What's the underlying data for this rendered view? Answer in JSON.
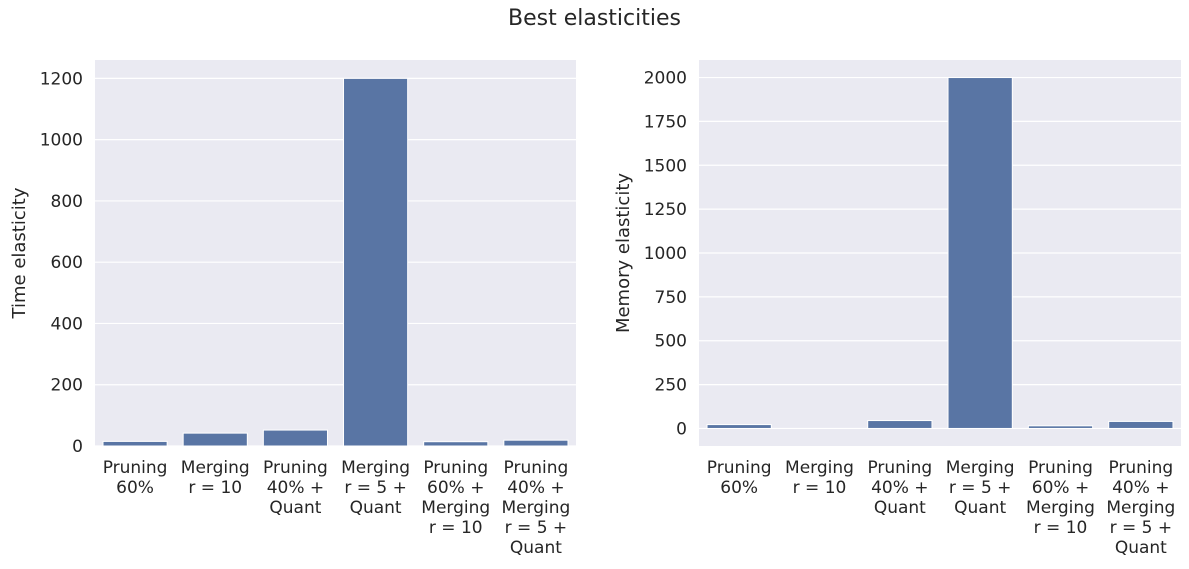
{
  "title": "Best elasticities",
  "colors": {
    "bar": "#5975a4",
    "plot_bg": "#eaeaf2",
    "grid": "#ffffff",
    "text": "#262626"
  },
  "chart_data": [
    {
      "type": "bar",
      "ylabel": "Time elasticity",
      "xlabel": "",
      "ylim": [
        0,
        1260
      ],
      "yticks": [
        0,
        200,
        400,
        600,
        800,
        1000,
        1200
      ],
      "categories": [
        [
          "Pruning",
          "60%"
        ],
        [
          "Merging",
          "r = 10"
        ],
        [
          "Pruning",
          "40% +",
          "Quant"
        ],
        [
          "Merging",
          "r = 5 +",
          "Quant"
        ],
        [
          "Pruning",
          "60% +",
          "Merging",
          "r = 10"
        ],
        [
          "Pruning",
          "40% +",
          "Merging",
          "r = 5 +",
          "Quant"
        ]
      ],
      "values": [
        15,
        42,
        52,
        1200,
        14,
        19
      ],
      "grid": true
    },
    {
      "type": "bar",
      "ylabel": "Memory elasticity",
      "xlabel": "",
      "ylim": [
        -100,
        2100
      ],
      "yticks": [
        0,
        250,
        500,
        750,
        1000,
        1250,
        1500,
        1750,
        2000
      ],
      "categories": [
        [
          "Pruning",
          "60%"
        ],
        [
          "Merging",
          "r = 10"
        ],
        [
          "Pruning",
          "40% +",
          "Quant"
        ],
        [
          "Merging",
          "r = 5 +",
          "Quant"
        ],
        [
          "Pruning",
          "60% +",
          "Merging",
          "r = 10"
        ],
        [
          "Pruning",
          "40% +",
          "Merging",
          "r = 5 +",
          "Quant"
        ]
      ],
      "values": [
        22,
        0,
        45,
        2000,
        15,
        40
      ],
      "grid": true
    }
  ]
}
